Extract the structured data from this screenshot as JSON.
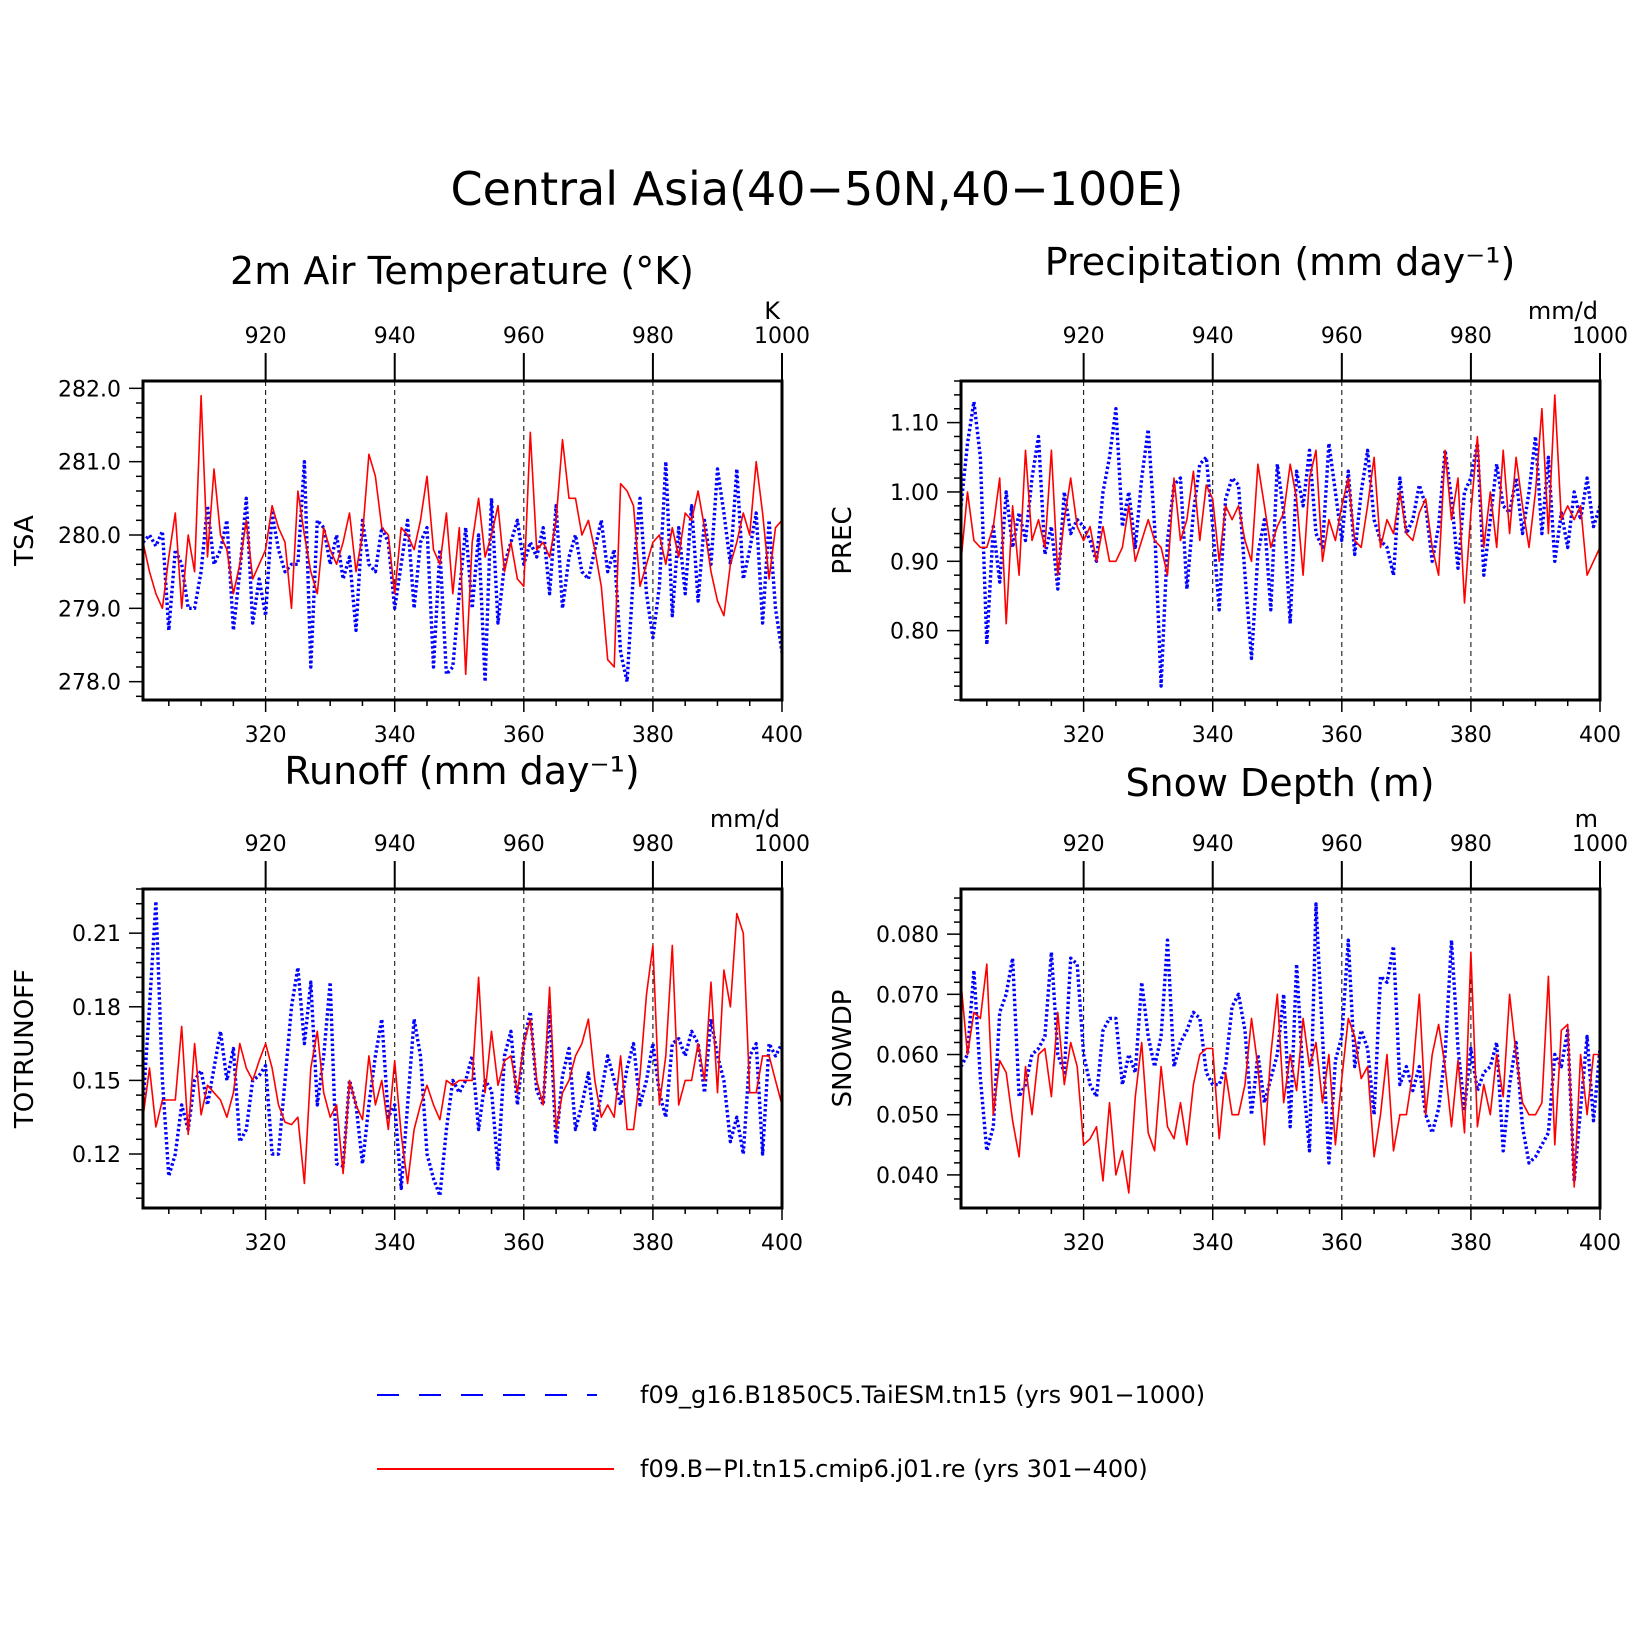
{
  "title": "Central Asia(40−50N,40−100E)",
  "colors": {
    "series_a": "#0000ff",
    "series_b": "#ff0000",
    "axis": "#000000"
  },
  "legend": {
    "a": "f09_g16.B1850C5.TaiESM.tn15 (yrs 901−1000)",
    "b": "f09.B−PI.tn15.cmip6.j01.re (yrs 301−400)"
  },
  "chart_data": [
    {
      "type": "line",
      "title": "2m Air Temperature (°K)",
      "units": "K",
      "ylabel": "TSA",
      "x_bottom": {
        "range": [
          301,
          400
        ],
        "ticks": [
          320,
          340,
          360,
          380,
          400
        ]
      },
      "x_top": {
        "range": [
          901,
          1000
        ],
        "ticks": [
          920,
          940,
          960,
          980,
          1000
        ]
      },
      "ylim": [
        277.75,
        282.1
      ],
      "yticks": [
        278.0,
        279.0,
        280.0,
        281.0,
        282.0
      ],
      "ytick_labels": [
        "278.0",
        "279.0",
        "280.0",
        "281.0",
        "282.0"
      ],
      "grid_x": [
        320,
        340,
        360,
        380
      ],
      "series": [
        {
          "key": "a",
          "style": "dotted",
          "color": "#0000ff",
          "values": [
            279.9,
            280.0,
            279.85,
            280.05,
            278.7,
            279.8,
            279.6,
            279.0,
            279.0,
            279.5,
            280.4,
            279.6,
            279.8,
            280.2,
            278.7,
            279.5,
            280.5,
            278.8,
            279.4,
            278.9,
            280.3,
            279.8,
            279.5,
            279.6,
            279.6,
            281.0,
            278.2,
            280.2,
            280.1,
            279.6,
            280.0,
            279.4,
            279.7,
            278.7,
            280.2,
            279.6,
            279.5,
            280.1,
            279.9,
            279.0,
            279.6,
            280.2,
            279.0,
            279.9,
            280.1,
            278.2,
            279.8,
            278.1,
            278.2,
            279.2,
            280.1,
            279.0,
            280.0,
            278.0,
            280.5,
            278.8,
            279.6,
            279.9,
            280.2,
            279.6,
            279.9,
            279.7,
            280.1,
            279.2,
            280.4,
            279.0,
            279.7,
            280.0,
            279.5,
            279.4,
            279.8,
            280.2,
            279.5,
            279.8,
            278.4,
            278.0,
            279.5,
            280.5,
            279.2,
            278.6,
            279.3,
            281.0,
            278.9,
            280.1,
            279.2,
            280.4,
            279.1,
            280.2,
            279.6,
            280.9,
            280.3,
            279.6,
            280.9,
            279.4,
            279.8,
            280.3,
            278.8,
            280.2,
            279.0,
            278.4
          ]
        },
        {
          "key": "b",
          "style": "solid",
          "color": "#ff0000",
          "values": [
            279.9,
            279.5,
            279.2,
            279.0,
            279.7,
            280.3,
            279.0,
            280.0,
            279.5,
            281.9,
            279.7,
            280.9,
            280.0,
            279.8,
            279.2,
            279.6,
            280.2,
            279.4,
            279.6,
            279.8,
            280.4,
            280.1,
            279.9,
            279.0,
            280.6,
            280.0,
            279.5,
            279.2,
            280.1,
            279.8,
            279.6,
            279.9,
            280.3,
            279.5,
            280.0,
            281.1,
            280.8,
            280.1,
            280.0,
            279.2,
            280.1,
            280.0,
            279.8,
            280.2,
            280.8,
            279.8,
            279.6,
            280.3,
            279.2,
            280.1,
            278.1,
            279.9,
            280.5,
            279.7,
            280.0,
            280.4,
            279.5,
            279.9,
            279.4,
            279.3,
            281.4,
            279.8,
            279.9,
            279.7,
            280.2,
            281.3,
            280.5,
            280.5,
            280.0,
            280.2,
            279.8,
            279.3,
            278.3,
            278.2,
            280.7,
            280.6,
            280.4,
            279.3,
            279.6,
            279.9,
            280.0,
            279.6,
            280.1,
            279.7,
            280.3,
            280.2,
            280.6,
            280.1,
            279.5,
            279.1,
            278.9,
            279.6,
            279.9,
            280.3,
            280.0,
            281.0,
            280.3,
            279.4,
            280.1,
            280.2
          ]
        }
      ]
    },
    {
      "type": "line",
      "title": "Precipitation (mm day⁻¹)",
      "units": "mm/d",
      "ylabel": "PREC",
      "x_bottom": {
        "range": [
          301,
          400
        ],
        "ticks": [
          320,
          340,
          360,
          380,
          400
        ]
      },
      "x_top": {
        "range": [
          901,
          1000
        ],
        "ticks": [
          920,
          940,
          960,
          980,
          1000
        ]
      },
      "ylim": [
        0.7,
        1.16
      ],
      "yticks": [
        0.8,
        0.9,
        1.0,
        1.1
      ],
      "ytick_labels": [
        "0.80",
        "0.90",
        "1.00",
        "1.10"
      ],
      "grid_x": [
        320,
        340,
        360,
        380
      ],
      "series": [
        {
          "key": "a",
          "style": "dotted",
          "color": "#0000ff",
          "values": [
            0.98,
            1.07,
            1.13,
            1.05,
            0.78,
            0.95,
            0.87,
            1.0,
            0.92,
            0.97,
            0.93,
            1.02,
            1.08,
            0.91,
            0.95,
            0.86,
            1.0,
            0.94,
            0.96,
            0.95,
            0.93,
            0.9,
            1.0,
            1.05,
            1.12,
            0.95,
            1.0,
            0.92,
            1.02,
            1.09,
            0.95,
            0.72,
            0.93,
            1.01,
            1.02,
            0.86,
            0.97,
            1.04,
            1.05,
            0.95,
            0.83,
            0.99,
            1.02,
            1.01,
            0.88,
            0.76,
            0.91,
            0.96,
            0.83,
            1.04,
            0.97,
            0.81,
            1.03,
            0.98,
            1.06,
            0.94,
            0.92,
            1.07,
            1.0,
            0.93,
            1.03,
            0.91,
            1.0,
            1.06,
            0.96,
            0.93,
            0.92,
            0.88,
            1.02,
            0.94,
            0.96,
            1.01,
            0.98,
            0.9,
            0.95,
            1.06,
            0.99,
            0.89,
            1.0,
            1.02,
            1.07,
            0.88,
            0.96,
            1.04,
            0.98,
            0.97,
            1.02,
            0.94,
            1.0,
            1.08,
            0.94,
            1.05,
            0.9,
            0.97,
            0.92,
            1.0,
            0.96,
            1.02,
            0.95,
            0.98
          ]
        },
        {
          "key": "b",
          "style": "solid",
          "color": "#ff0000",
          "values": [
            0.9,
            1.0,
            0.93,
            0.92,
            0.92,
            0.95,
            1.02,
            0.81,
            0.98,
            0.88,
            1.06,
            0.93,
            0.96,
            0.92,
            1.06,
            0.88,
            0.96,
            1.02,
            0.95,
            0.93,
            0.95,
            0.9,
            0.95,
            0.9,
            0.9,
            0.92,
            0.98,
            0.9,
            0.93,
            0.96,
            0.93,
            0.92,
            0.88,
            1.02,
            0.93,
            0.96,
            1.03,
            0.93,
            1.01,
            0.99,
            0.9,
            0.98,
            0.96,
            0.98,
            0.93,
            0.9,
            1.04,
            0.98,
            0.92,
            0.95,
            0.97,
            1.04,
            0.99,
            0.88,
            1.02,
            1.06,
            0.9,
            0.96,
            0.93,
            0.98,
            1.02,
            0.93,
            0.92,
            0.98,
            1.05,
            0.92,
            0.96,
            0.94,
            1.0,
            0.94,
            0.93,
            0.97,
            0.99,
            0.92,
            0.88,
            1.06,
            0.96,
            1.02,
            0.84,
            0.97,
            1.08,
            0.92,
            1.0,
            0.92,
            1.06,
            0.94,
            1.05,
            0.98,
            0.92,
            1.0,
            1.12,
            0.94,
            1.14,
            0.96,
            0.98,
            0.96,
            0.98,
            0.88,
            0.9,
            0.92
          ]
        }
      ]
    },
    {
      "type": "line",
      "title": "Runoff (mm day⁻¹)",
      "units": "mm/d",
      "ylabel": "TOTRUNOFF",
      "x_bottom": {
        "range": [
          301,
          400
        ],
        "ticks": [
          320,
          340,
          360,
          380,
          400
        ]
      },
      "x_top": {
        "range": [
          901,
          1000
        ],
        "ticks": [
          920,
          940,
          960,
          980,
          1000
        ]
      },
      "ylim": [
        0.098,
        0.228
      ],
      "yticks": [
        0.12,
        0.15,
        0.18,
        0.21
      ],
      "ytick_labels": [
        "0.12",
        "0.15",
        "0.18",
        "0.21"
      ],
      "grid_x": [
        320,
        340,
        360,
        380
      ],
      "series": [
        {
          "key": "a",
          "style": "dotted",
          "color": "#0000ff",
          "values": [
            0.14,
            0.18,
            0.223,
            0.15,
            0.111,
            0.12,
            0.14,
            0.13,
            0.15,
            0.154,
            0.14,
            0.155,
            0.17,
            0.15,
            0.163,
            0.125,
            0.13,
            0.15,
            0.152,
            0.156,
            0.12,
            0.12,
            0.15,
            0.18,
            0.196,
            0.165,
            0.19,
            0.14,
            0.16,
            0.19,
            0.116,
            0.115,
            0.15,
            0.14,
            0.116,
            0.14,
            0.16,
            0.175,
            0.135,
            0.14,
            0.106,
            0.14,
            0.175,
            0.16,
            0.12,
            0.11,
            0.103,
            0.13,
            0.15,
            0.145,
            0.15,
            0.16,
            0.13,
            0.15,
            0.146,
            0.114,
            0.16,
            0.17,
            0.14,
            0.165,
            0.178,
            0.146,
            0.14,
            0.18,
            0.124,
            0.152,
            0.163,
            0.13,
            0.14,
            0.153,
            0.13,
            0.145,
            0.16,
            0.15,
            0.14,
            0.155,
            0.165,
            0.14,
            0.15,
            0.165,
            0.145,
            0.135,
            0.165,
            0.167,
            0.16,
            0.17,
            0.165,
            0.145,
            0.175,
            0.16,
            0.15,
            0.125,
            0.135,
            0.12,
            0.16,
            0.165,
            0.12,
            0.165,
            0.16,
            0.165
          ]
        },
        {
          "key": "b",
          "style": "solid",
          "color": "#ff0000",
          "values": [
            0.135,
            0.155,
            0.131,
            0.142,
            0.142,
            0.142,
            0.172,
            0.128,
            0.165,
            0.136,
            0.148,
            0.145,
            0.142,
            0.135,
            0.145,
            0.165,
            0.155,
            0.15,
            0.158,
            0.165,
            0.155,
            0.14,
            0.133,
            0.132,
            0.135,
            0.108,
            0.155,
            0.17,
            0.145,
            0.135,
            0.14,
            0.112,
            0.15,
            0.14,
            0.134,
            0.16,
            0.14,
            0.15,
            0.13,
            0.158,
            0.128,
            0.108,
            0.13,
            0.14,
            0.148,
            0.14,
            0.134,
            0.15,
            0.148,
            0.15,
            0.15,
            0.15,
            0.192,
            0.145,
            0.17,
            0.148,
            0.158,
            0.16,
            0.145,
            0.165,
            0.175,
            0.15,
            0.14,
            0.188,
            0.13,
            0.145,
            0.15,
            0.16,
            0.165,
            0.175,
            0.15,
            0.135,
            0.14,
            0.135,
            0.16,
            0.13,
            0.13,
            0.152,
            0.185,
            0.205,
            0.14,
            0.16,
            0.205,
            0.14,
            0.15,
            0.15,
            0.165,
            0.15,
            0.19,
            0.145,
            0.195,
            0.18,
            0.218,
            0.21,
            0.145,
            0.145,
            0.16,
            0.16,
            0.15,
            0.14
          ]
        }
      ]
    },
    {
      "type": "line",
      "title": "Snow Depth (m)",
      "units": "m",
      "ylabel": "SNOWDP",
      "x_bottom": {
        "range": [
          301,
          400
        ],
        "ticks": [
          320,
          340,
          360,
          380,
          400
        ]
      },
      "x_top": {
        "range": [
          901,
          1000
        ],
        "ticks": [
          920,
          940,
          960,
          980,
          1000
        ]
      },
      "ylim": [
        0.0345,
        0.0875
      ],
      "yticks": [
        0.04,
        0.05,
        0.06,
        0.07,
        0.08
      ],
      "ytick_labels": [
        "0.040",
        "0.050",
        "0.060",
        "0.070",
        "0.080"
      ],
      "grid_x": [
        320,
        340,
        360,
        380
      ],
      "series": [
        {
          "key": "a",
          "style": "dotted",
          "color": "#0000ff",
          "values": [
            0.058,
            0.06,
            0.074,
            0.056,
            0.044,
            0.048,
            0.067,
            0.07,
            0.076,
            0.053,
            0.055,
            0.06,
            0.061,
            0.063,
            0.077,
            0.06,
            0.057,
            0.076,
            0.075,
            0.06,
            0.055,
            0.053,
            0.064,
            0.066,
            0.066,
            0.055,
            0.06,
            0.057,
            0.072,
            0.063,
            0.058,
            0.063,
            0.079,
            0.058,
            0.062,
            0.064,
            0.067,
            0.066,
            0.057,
            0.055,
            0.055,
            0.058,
            0.068,
            0.07,
            0.064,
            0.05,
            0.06,
            0.052,
            0.056,
            0.06,
            0.07,
            0.048,
            0.075,
            0.056,
            0.044,
            0.085,
            0.063,
            0.042,
            0.059,
            0.063,
            0.079,
            0.058,
            0.064,
            0.061,
            0.05,
            0.073,
            0.072,
            0.078,
            0.055,
            0.058,
            0.054,
            0.058,
            0.05,
            0.047,
            0.051,
            0.06,
            0.079,
            0.061,
            0.051,
            0.061,
            0.054,
            0.057,
            0.058,
            0.062,
            0.044,
            0.055,
            0.062,
            0.048,
            0.042,
            0.043,
            0.045,
            0.047,
            0.06,
            0.058,
            0.064,
            0.039,
            0.051,
            0.063,
            0.049,
            0.061
          ]
        },
        {
          "key": "b",
          "style": "solid",
          "color": "#ff0000",
          "values": [
            0.072,
            0.06,
            0.067,
            0.066,
            0.075,
            0.05,
            0.059,
            0.057,
            0.049,
            0.043,
            0.058,
            0.05,
            0.06,
            0.061,
            0.053,
            0.067,
            0.055,
            0.062,
            0.058,
            0.045,
            0.046,
            0.048,
            0.039,
            0.052,
            0.04,
            0.044,
            0.037,
            0.053,
            0.062,
            0.047,
            0.044,
            0.058,
            0.048,
            0.046,
            0.052,
            0.045,
            0.055,
            0.06,
            0.061,
            0.061,
            0.046,
            0.057,
            0.05,
            0.05,
            0.055,
            0.066,
            0.058,
            0.045,
            0.06,
            0.07,
            0.052,
            0.06,
            0.054,
            0.066,
            0.058,
            0.062,
            0.052,
            0.06,
            0.045,
            0.056,
            0.066,
            0.063,
            0.056,
            0.058,
            0.043,
            0.05,
            0.06,
            0.044,
            0.05,
            0.05,
            0.057,
            0.07,
            0.05,
            0.06,
            0.065,
            0.058,
            0.048,
            0.059,
            0.047,
            0.077,
            0.048,
            0.055,
            0.05,
            0.06,
            0.053,
            0.07,
            0.06,
            0.052,
            0.05,
            0.05,
            0.052,
            0.073,
            0.045,
            0.064,
            0.065,
            0.038,
            0.06,
            0.05,
            0.06,
            0.06
          ]
        }
      ]
    }
  ]
}
